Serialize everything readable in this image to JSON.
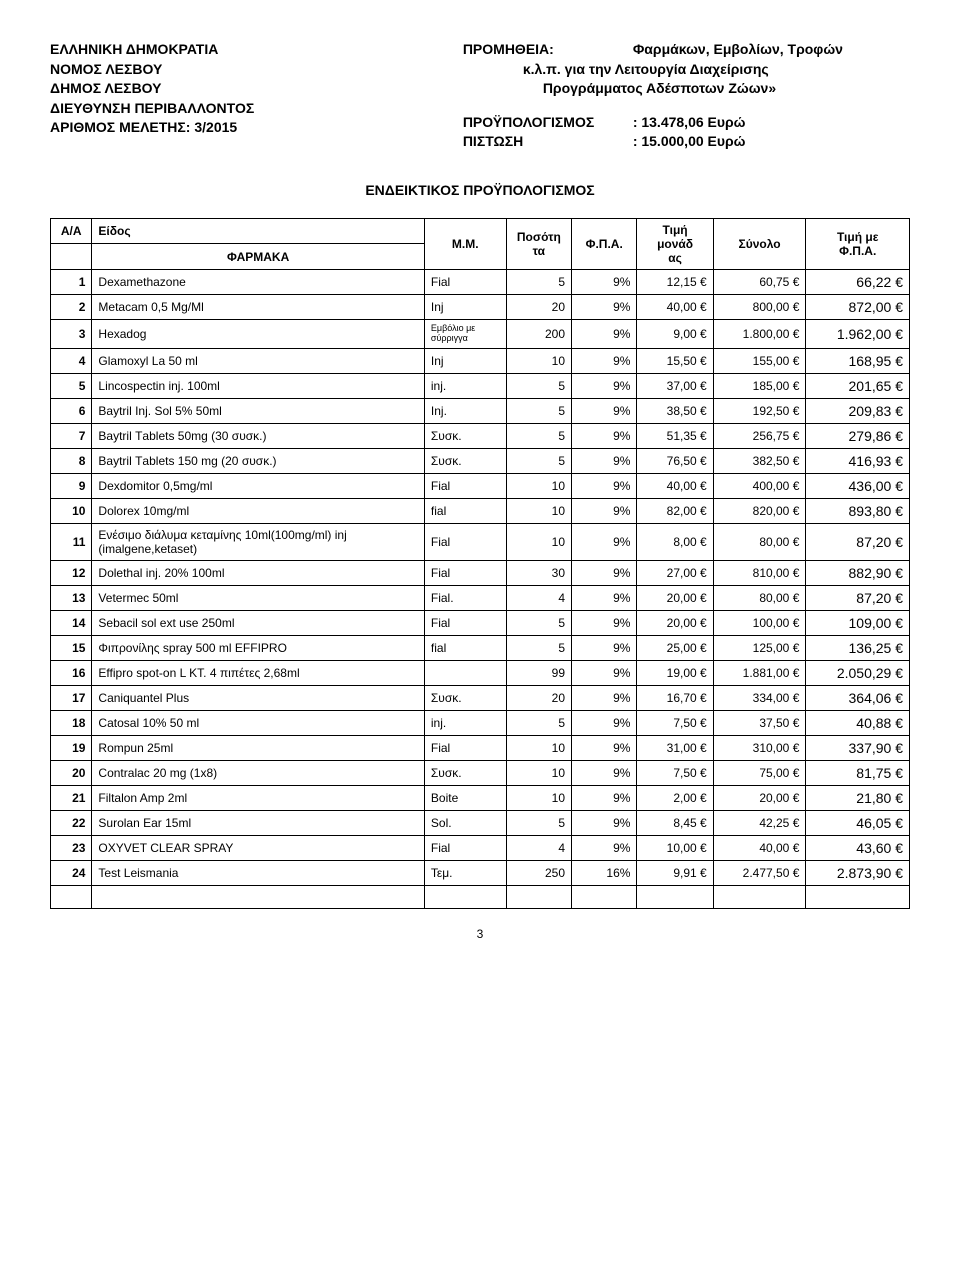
{
  "header": {
    "left": [
      "ΕΛΛΗΝΙΚΗ ΔΗΜΟΚΡΑΤΙΑ",
      "ΝΟΜΟΣ ΛΕΣΒΟΥ",
      "ΔΗΜΟΣ ΛΕΣΒΟΥ",
      "ΔΙΕΥΘΥΝΣΗ ΠΕΡΙΒΑΛΛΟΝΤΟΣ",
      "ΑΡΙΘΜΟΣ ΜΕΛΕΤΗΣ:  3/2015"
    ],
    "right": {
      "supply_label": "ΠΡΟΜΗΘΕΙΑ:",
      "supply_lines": [
        "Φαρμάκων, Εμβολίων, Τροφών",
        "κ.λ.π. για την Λειτουργία Διαχείρισης",
        "Προγράμματος Αδέσποτων Ζώων»"
      ],
      "budget_label": "ΠΡΟΫΠΟΛΟΓΙΣΜΟΣ",
      "budget_value": ": 13.478,06 Ευρώ",
      "credit_label": "ΠΙΣΤΩΣΗ",
      "credit_value": ": 15.000,00  Ευρώ"
    }
  },
  "section_title": "ΕΝΔΕΙΚΤΙΚΟΣ ΠΡΟΫΠΟΛΟΓΙΣΜΟΣ",
  "columns": {
    "aa": "Α/Α",
    "species": "Είδος",
    "subheader": "ΦΑΡΜΑΚΑ",
    "mm": "Μ.Μ.",
    "qty": "Ποσότη\nτα",
    "fpa": "Φ.Π.Α.",
    "unit": "Τιμή\nμονάδ\nας",
    "subtotal": "Σύνολο",
    "total_vat": "Τιμή με\nΦ.Π.Α."
  },
  "rows": [
    {
      "aa": "1",
      "name": "Dexamethazone",
      "mm": "Fial",
      "qty": "5",
      "fpa": "9%",
      "unit": "12,15 €",
      "subtotal": "60,75 €",
      "total": "66,22 €"
    },
    {
      "aa": "2",
      "name": "Metacam  0,5 Mg/Ml",
      "mm": "Inj",
      "qty": "20",
      "fpa": "9%",
      "unit": "40,00 €",
      "subtotal": "800,00 €",
      "total": "872,00 €"
    },
    {
      "aa": "3",
      "name": "Hexadog",
      "mm": "Εμβόλιο με σύρριγγα",
      "qty": "200",
      "fpa": "9%",
      "unit": "9,00 €",
      "subtotal": "1.800,00 €",
      "total": "1.962,00 €"
    },
    {
      "aa": "4",
      "name": "Glamoxyl La 50 ml",
      "mm": "Inj",
      "qty": "10",
      "fpa": "9%",
      "unit": "15,50 €",
      "subtotal": "155,00 €",
      "total": "168,95 €"
    },
    {
      "aa": "5",
      "name": "Lincospectin inj. 100ml",
      "mm": "inj.",
      "qty": "5",
      "fpa": "9%",
      "unit": "37,00 €",
      "subtotal": "185,00 €",
      "total": "201,65 €"
    },
    {
      "aa": "6",
      "name": "Baytril Inj. Sol 5% 50ml",
      "mm": "Inj.",
      "qty": "5",
      "fpa": "9%",
      "unit": "38,50 €",
      "subtotal": "192,50 €",
      "total": "209,83 €"
    },
    {
      "aa": "7",
      "name": "Baytril  Τablets 50mg  (30 συσκ.)",
      "mm": "Συσκ.",
      "qty": "5",
      "fpa": "9%",
      "unit": "51,35 €",
      "subtotal": "256,75 €",
      "total": "279,86 €"
    },
    {
      "aa": "8",
      "name": "Baytril Τablets 150 mg (20 συσκ.)",
      "mm": "Συσκ.",
      "qty": "5",
      "fpa": "9%",
      "unit": "76,50 €",
      "subtotal": "382,50 €",
      "total": "416,93 €"
    },
    {
      "aa": "9",
      "name": "Dexdomitor 0,5mg/ml",
      "mm": "Fial",
      "qty": "10",
      "fpa": "9%",
      "unit": "40,00 €",
      "subtotal": "400,00 €",
      "total": "436,00 €"
    },
    {
      "aa": "10",
      "name": "Dolorex 10mg/ml",
      "mm": "fial",
      "qty": "10",
      "fpa": "9%",
      "unit": "82,00 €",
      "subtotal": "820,00 €",
      "total": "893,80 €"
    },
    {
      "aa": "11",
      "name": "Ενέσιμο διάλυμα κεταμίνης 10ml(100mg/ml) inj (imalgene,ketaset)",
      "mm": "Fial",
      "qty": "10",
      "fpa": "9%",
      "unit": "8,00 €",
      "subtotal": "80,00 €",
      "total": "87,20 €"
    },
    {
      "aa": "12",
      "name": "Dolethal  inj. 20% 100ml",
      "mm": "Fial",
      "qty": "30",
      "fpa": "9%",
      "unit": "27,00 €",
      "subtotal": "810,00 €",
      "total": "882,90 €"
    },
    {
      "aa": "13",
      "name": "Vetermec 50ml",
      "mm": "Fial.",
      "qty": "4",
      "fpa": "9%",
      "unit": "20,00 €",
      "subtotal": "80,00 €",
      "total": "87,20 €"
    },
    {
      "aa": "14",
      "name": "Sebacil sol ext use 250ml",
      "mm": "Fial",
      "qty": "5",
      "fpa": "9%",
      "unit": "20,00 €",
      "subtotal": "100,00 €",
      "total": "109,00 €"
    },
    {
      "aa": "15",
      "name": "Φιπρονίλης spray 500 ml EFFIPRO",
      "mm": "fial",
      "qty": "5",
      "fpa": "9%",
      "unit": "25,00 €",
      "subtotal": "125,00 €",
      "total": "136,25 €"
    },
    {
      "aa": "16",
      "name": "Effipro spot-on L KT. 4 πιπέτες 2,68ml",
      "mm": "",
      "qty": "99",
      "fpa": "9%",
      "unit": "19,00 €",
      "subtotal": "1.881,00 €",
      "total": "2.050,29 €"
    },
    {
      "aa": "17",
      "name": "Caniquantel Plus",
      "mm": "Συσκ.",
      "qty": "20",
      "fpa": "9%",
      "unit": "16,70 €",
      "subtotal": "334,00 €",
      "total": "364,06 €"
    },
    {
      "aa": "18",
      "name": "Catosal 10% 50 ml",
      "mm": "inj.",
      "qty": "5",
      "fpa": "9%",
      "unit": "7,50 €",
      "subtotal": "37,50 €",
      "total": "40,88 €"
    },
    {
      "aa": "19",
      "name": "Rompun 25ml",
      "mm": "Fial",
      "qty": "10",
      "fpa": "9%",
      "unit": "31,00 €",
      "subtotal": "310,00 €",
      "total": "337,90 €"
    },
    {
      "aa": "20",
      "name": "Contralac  20 mg (1x8)",
      "mm": "Συσκ.",
      "qty": "10",
      "fpa": "9%",
      "unit": "7,50 €",
      "subtotal": "75,00 €",
      "total": "81,75 €"
    },
    {
      "aa": "21",
      "name": "Filtalon Amp 2ml",
      "mm": "Boite",
      "qty": "10",
      "fpa": "9%",
      "unit": "2,00 €",
      "subtotal": "20,00 €",
      "total": "21,80 €"
    },
    {
      "aa": "22",
      "name": "Surolan Ear 15ml",
      "mm": "Sol.",
      "qty": "5",
      "fpa": "9%",
      "unit": "8,45 €",
      "subtotal": "42,25 €",
      "total": "46,05 €"
    },
    {
      "aa": "23",
      "name": "OXYVET CLEAR SPRAY",
      "mm": "Fial",
      "qty": "4",
      "fpa": "9%",
      "unit": "10,00 €",
      "subtotal": "40,00 €",
      "total": "43,60 €"
    },
    {
      "aa": "24",
      "name": "Test Leismania",
      "mm": "Τεμ.",
      "qty": "250",
      "fpa": "16%",
      "unit": "9,91 €",
      "subtotal": "2.477,50 €",
      "total": "2.873,90 €"
    }
  ],
  "page_number": "3"
}
